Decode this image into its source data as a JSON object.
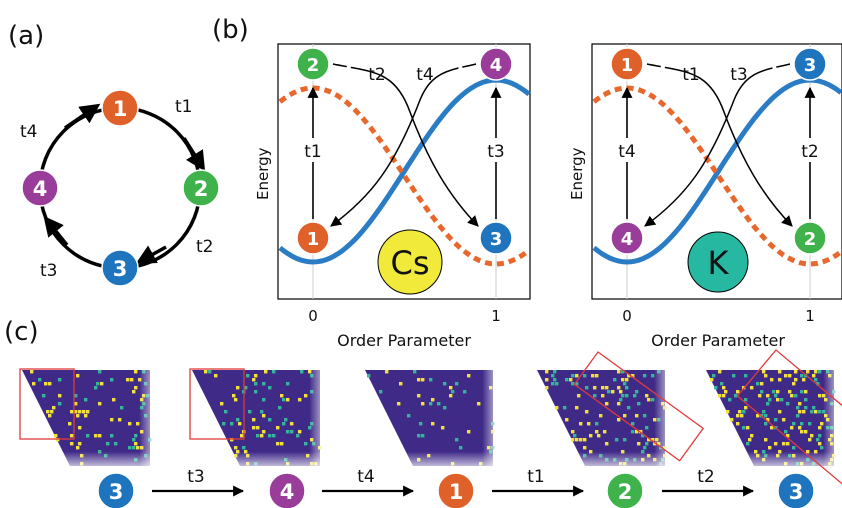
{
  "colors": {
    "state1": "#e0602a",
    "state2": "#3fb24c",
    "state3": "#1f75bd",
    "state4": "#9a3c9a",
    "blue_curve": "#2a7cc4",
    "orange_curve": "#e8672c",
    "cs_badge": "#f2ea3a",
    "k_badge": "#27b8a1",
    "lattice_bg": "#3f2a88",
    "lattice_yellow": "#f4e23a",
    "lattice_teal": "#35b59a",
    "highlight_box": "#e23a3a"
  },
  "panel_a": {
    "label": "(a)",
    "nodes": [
      "1",
      "2",
      "3",
      "4"
    ],
    "transitions": [
      "t1",
      "t2",
      "t3",
      "t4"
    ]
  },
  "panel_b": {
    "label": "(b)",
    "cs": {
      "badge": "Cs",
      "ylabel": "Energy",
      "xlabel": "Order Parameter",
      "xticks": [
        "0",
        "1"
      ],
      "top_left": "2",
      "top_right": "4",
      "bottom_left": "1",
      "bottom_right": "3",
      "left_arrow": "t1",
      "right_arrow": "t3",
      "cross_a": "t2",
      "cross_b": "t4"
    },
    "k": {
      "badge": "K",
      "ylabel": "Energy",
      "xlabel": "Order Parameter",
      "xticks": [
        "0",
        "1"
      ],
      "top_left": "1",
      "top_right": "3",
      "bottom_left": "4",
      "bottom_right": "2",
      "left_arrow": "t4",
      "right_arrow": "t2",
      "cross_a": "t1",
      "cross_b": "t3"
    }
  },
  "panel_c": {
    "label": "(c)",
    "sequence": [
      "3",
      "4",
      "1",
      "2",
      "3"
    ],
    "transitions": [
      "t3",
      "t4",
      "t1",
      "t2"
    ]
  }
}
